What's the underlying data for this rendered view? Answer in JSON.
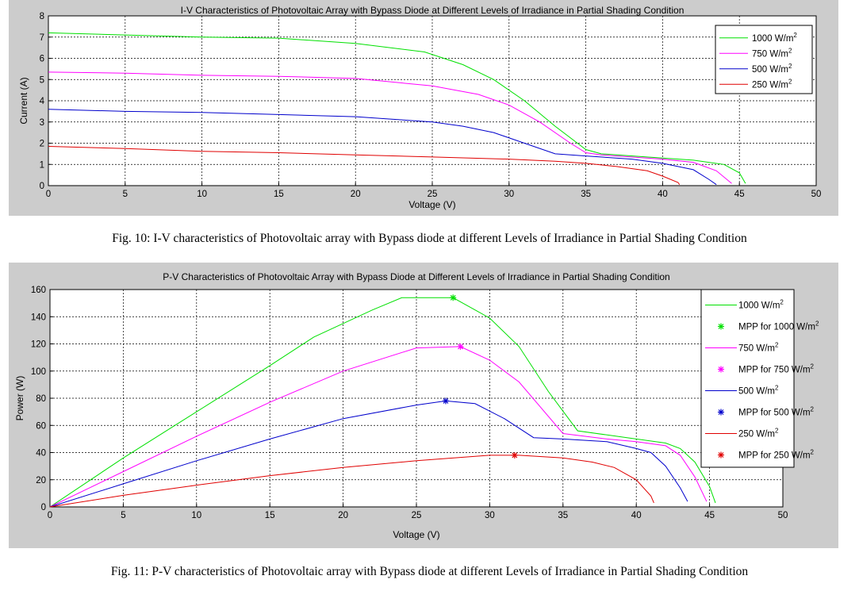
{
  "colors": {
    "green": "#00e000",
    "magenta": "#ff00ff",
    "blue": "#0000cc",
    "red": "#e00000"
  },
  "figures": [
    {
      "caption": "Fig. 10: I-V characteristics of Photovoltaic array with Bypass diode at different Levels of Irradiance in Partial Shading Condition"
    },
    {
      "caption": "Fig. 11: P-V characteristics of Photovoltaic array with Bypass diode at different Levels of Irradiance in Partial Shading Condition"
    }
  ],
  "chart_data": [
    {
      "type": "line",
      "title": "I-V Characteristics of Photovoltaic Array with Bypass Diode at Different Levels of Irradiance in Partial Shading Condition",
      "xlabel": "Voltage (V)",
      "ylabel": "Current (A)",
      "xlim": [
        0,
        50
      ],
      "ylim": [
        0,
        8
      ],
      "xticks": [
        "0",
        "5",
        "10",
        "15",
        "20",
        "25",
        "30",
        "35",
        "40",
        "45",
        "50"
      ],
      "yticks": [
        "0",
        "1",
        "2",
        "3",
        "4",
        "5",
        "6",
        "7",
        "8"
      ],
      "grid": true,
      "legend_position": "top-right",
      "series": [
        {
          "name": "1000 W/m",
          "sup": "2",
          "color_key": "green",
          "x": [
            0,
            5,
            10,
            15,
            20,
            24.5,
            27,
            29,
            31,
            33,
            35,
            36,
            40,
            42,
            44,
            45,
            45.4
          ],
          "y": [
            7.2,
            7.1,
            7.0,
            6.95,
            6.7,
            6.3,
            5.7,
            5.0,
            4.0,
            2.8,
            1.7,
            1.5,
            1.3,
            1.2,
            1.0,
            0.6,
            0.1
          ]
        },
        {
          "name": "750 W/m",
          "sup": "2",
          "color_key": "magenta",
          "x": [
            0,
            5,
            10,
            15,
            20,
            25,
            28,
            30,
            32,
            34,
            35,
            36,
            40,
            42,
            43.5,
            44.5
          ],
          "y": [
            5.35,
            5.3,
            5.2,
            5.15,
            5.05,
            4.7,
            4.3,
            3.8,
            3.0,
            2.0,
            1.55,
            1.45,
            1.25,
            1.1,
            0.7,
            0.1
          ]
        },
        {
          "name": "500 W/m",
          "sup": "2",
          "color_key": "blue",
          "x": [
            0,
            5,
            10,
            15,
            20,
            25,
            27,
            29,
            31,
            33,
            35,
            38,
            40,
            42,
            43,
            43.5
          ],
          "y": [
            3.6,
            3.5,
            3.45,
            3.35,
            3.25,
            3.0,
            2.8,
            2.5,
            2.0,
            1.5,
            1.4,
            1.25,
            1.05,
            0.75,
            0.3,
            0.05
          ]
        },
        {
          "name": "250 W/m",
          "sup": "2",
          "color_key": "red",
          "x": [
            0,
            5,
            10,
            15,
            20,
            25,
            30,
            33,
            35,
            37,
            39,
            40,
            41,
            41.1
          ],
          "y": [
            1.85,
            1.75,
            1.62,
            1.55,
            1.45,
            1.35,
            1.25,
            1.15,
            1.05,
            0.9,
            0.7,
            0.45,
            0.15,
            0.05
          ]
        }
      ]
    },
    {
      "type": "line",
      "title": "P-V Characteristics of Photovoltaic Array with Bypass Diode at Different Levels of Irradiance in Partial Shading Condition",
      "xlabel": "Voltage (V)",
      "ylabel": "Power (W)",
      "xlim": [
        0,
        50
      ],
      "ylim": [
        0,
        160
      ],
      "xticks": [
        "0",
        "5",
        "10",
        "15",
        "20",
        "25",
        "30",
        "35",
        "40",
        "45",
        "50"
      ],
      "yticks": [
        "0",
        "20",
        "40",
        "60",
        "80",
        "100",
        "120",
        "140",
        "160"
      ],
      "grid": true,
      "legend_position": "top-right",
      "series": [
        {
          "name": "1000 W/m",
          "sup": "2",
          "color_key": "green",
          "x": [
            0,
            5,
            10,
            15,
            18,
            20,
            22,
            24,
            25,
            27.5,
            29,
            30,
            32,
            34,
            36,
            40,
            42,
            43,
            44,
            45,
            45.4
          ],
          "y": [
            0,
            36,
            70,
            104,
            125,
            135,
            145,
            154,
            154,
            154,
            145,
            139,
            118,
            85,
            56,
            50,
            47,
            43,
            33,
            15,
            3
          ]
        },
        {
          "name": "MPP for 1000 W/m",
          "sup": "2",
          "color_key": "green",
          "marker": "*",
          "x": [
            27.5
          ],
          "y": [
            154
          ]
        },
        {
          "name": "750 W/m",
          "sup": "2",
          "color_key": "magenta",
          "x": [
            0,
            5,
            10,
            15,
            20,
            25,
            28,
            30,
            32,
            35,
            38,
            40,
            42,
            43,
            44,
            44.8
          ],
          "y": [
            0,
            26,
            52,
            77,
            100,
            117,
            118,
            108,
            92,
            54,
            50,
            48,
            45,
            38,
            22,
            4
          ]
        },
        {
          "name": "MPP for 750 W/m",
          "sup": "2",
          "color_key": "magenta",
          "marker": "*",
          "x": [
            28
          ],
          "y": [
            118
          ]
        },
        {
          "name": "500 W/m",
          "sup": "2",
          "color_key": "blue",
          "x": [
            0,
            5,
            10,
            15,
            20,
            25,
            27,
            29,
            31,
            33,
            35,
            38,
            40,
            41,
            42,
            43,
            43.5
          ],
          "y": [
            0,
            17,
            34,
            50,
            65,
            75,
            78,
            76,
            65,
            51,
            50,
            48,
            43,
            40,
            30,
            14,
            4
          ]
        },
        {
          "name": "MPP for 500 W/m",
          "sup": "2",
          "color_key": "blue",
          "marker": "*",
          "x": [
            27
          ],
          "y": [
            78
          ]
        },
        {
          "name": "250 W/m",
          "sup": "2",
          "color_key": "red",
          "x": [
            0,
            5,
            10,
            15,
            20,
            25,
            30,
            32,
            35,
            37,
            38.5,
            40,
            41,
            41.2
          ],
          "y": [
            0,
            8.5,
            16,
            23,
            29,
            34,
            38,
            38,
            36,
            33,
            29,
            20,
            8,
            3
          ]
        },
        {
          "name": "MPP for 250 W/m",
          "sup": "2",
          "color_key": "red",
          "marker": "*",
          "x": [
            31.7
          ],
          "y": [
            38
          ]
        }
      ]
    }
  ]
}
